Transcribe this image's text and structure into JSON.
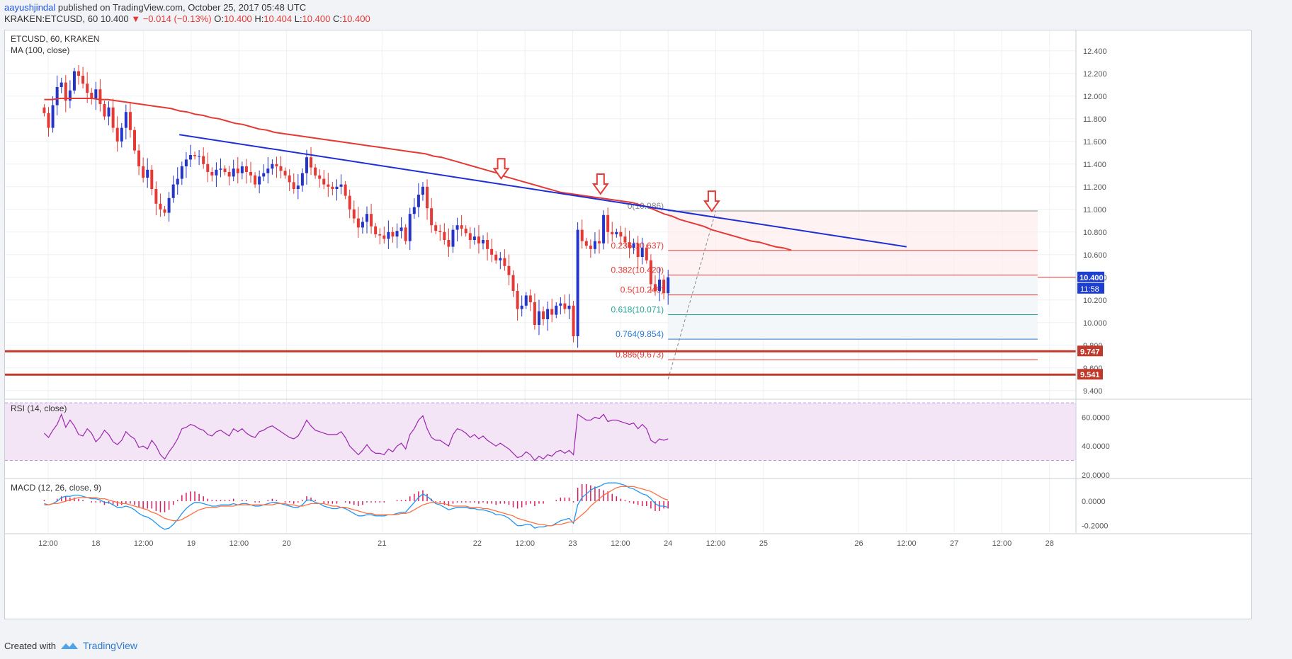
{
  "header": {
    "author": "aayushjindal",
    "published": "published on TradingView.com, October 25, 2017 05:48 UTC",
    "symbol_line": "KRAKEN:ETCUSD, 60",
    "price": "10.400",
    "change": "−0.014 (−0.13%)",
    "o_label": "O:",
    "o_value": "10.400",
    "h_label": "H:",
    "h_value": "10.404",
    "l_label": "L:",
    "l_value": "10.400",
    "c_label": "C:",
    "c_value": "10.400"
  },
  "chart_data": [
    {
      "type": "candlestick",
      "title": "ETCUSD, 60, KRAKEN",
      "indicator": "MA (100, close)",
      "ylim": [
        9.33,
        12.58
      ],
      "y_ticks": [
        "12.400",
        "12.200",
        "12.000",
        "11.800",
        "11.600",
        "11.400",
        "11.200",
        "11.000",
        "10.800",
        "10.600",
        "10.400",
        "10.200",
        "10.000",
        "9.800",
        "9.600",
        "9.400"
      ],
      "x_tick_labels": [
        "12:00",
        "18",
        "12:00",
        "19",
        "12:00",
        "20",
        "21",
        "22",
        "12:00",
        "23",
        "12:00",
        "24",
        "12:00",
        "25",
        "26",
        "12:00",
        "27",
        "12:00",
        "28"
      ],
      "x_tick_hours": [
        -36,
        -24,
        -12,
        0,
        12,
        24,
        48,
        72,
        84,
        96,
        108,
        120,
        132,
        144,
        168,
        180,
        192,
        204,
        216
      ],
      "closes": [
        11.85,
        11.72,
        11.92,
        12.08,
        12.12,
        11.96,
        12.05,
        12.22,
        12.18,
        12.11,
        12.03,
        11.98,
        12.06,
        11.93,
        11.82,
        11.9,
        11.72,
        11.6,
        11.72,
        11.86,
        11.7,
        11.52,
        11.38,
        11.28,
        11.35,
        11.18,
        11.05,
        11.0,
        10.97,
        11.1,
        11.22,
        11.27,
        11.38,
        11.44,
        11.48,
        11.47,
        11.47,
        11.4,
        11.33,
        11.3,
        11.35,
        11.36,
        11.33,
        11.29,
        11.36,
        11.32,
        11.38,
        11.33,
        11.3,
        11.22,
        11.29,
        11.32,
        11.36,
        11.4,
        11.38,
        11.34,
        11.3,
        11.24,
        11.18,
        11.21,
        11.32,
        11.46,
        11.37,
        11.3,
        11.27,
        11.22,
        11.2,
        11.18,
        11.2,
        11.22,
        11.12,
        11.0,
        10.92,
        10.84,
        10.89,
        10.96,
        10.85,
        10.78,
        10.77,
        10.74,
        10.8,
        10.76,
        10.81,
        10.84,
        10.72,
        10.96,
        11.02,
        11.13,
        11.2,
        11.01,
        10.86,
        10.81,
        10.8,
        10.73,
        10.67,
        10.82,
        10.86,
        10.83,
        10.79,
        10.73,
        10.76,
        10.7,
        10.73,
        10.65,
        10.6,
        10.55,
        10.57,
        10.5,
        10.42,
        10.28,
        10.12,
        10.15,
        10.24,
        10.18,
        9.98,
        10.1,
        10.03,
        10.12,
        10.07,
        10.15,
        10.17,
        10.12,
        10.15,
        9.88,
        10.82,
        10.72,
        10.68,
        10.65,
        10.72,
        10.7,
        10.95,
        10.8,
        10.78,
        10.8,
        10.76,
        10.71,
        10.66,
        10.7,
        10.58,
        10.66,
        10.55,
        10.34,
        10.28,
        10.38,
        10.26,
        10.4
      ],
      "ma100": [
        11.97,
        11.97,
        11.98,
        11.98,
        11.98,
        11.98,
        11.98,
        11.97,
        11.97,
        11.96,
        11.95,
        11.94,
        11.93,
        11.92,
        11.91,
        11.9,
        11.89,
        11.87,
        11.86,
        11.84,
        11.83,
        11.81,
        11.8,
        11.78,
        11.76,
        11.75,
        11.73,
        11.71,
        11.7,
        11.68,
        11.67,
        11.66,
        11.65,
        11.64,
        11.63,
        11.62,
        11.61,
        11.6,
        11.59,
        11.58,
        11.57,
        11.56,
        11.55,
        11.54,
        11.53,
        11.52,
        11.51,
        11.5,
        11.49,
        11.47,
        11.46,
        11.44,
        11.42,
        11.4,
        11.38,
        11.36,
        11.34,
        11.32,
        11.29,
        11.27,
        11.25,
        11.23,
        11.21,
        11.19,
        11.17,
        11.15,
        11.14,
        11.13,
        11.12,
        11.11,
        11.1,
        11.09,
        11.08,
        11.07,
        11.06,
        11.04,
        11.02,
        10.99,
        10.96,
        10.94,
        10.91,
        10.89,
        10.87,
        10.85,
        10.82,
        10.8,
        10.78,
        10.76,
        10.74,
        10.72,
        10.71,
        10.69,
        10.67,
        10.66,
        10.64
      ],
      "series": [
        {
          "name": "MA (100, close)"
        },
        {
          "name": "RSI (14, close)"
        },
        {
          "name": "MACD (12, 26, close, 9)"
        }
      ],
      "trendline": {
        "from_hour": -3,
        "from_value": 11.66,
        "to_hour": 180,
        "to_value": 10.67
      },
      "markers_hours": [
        78,
        103,
        131
      ],
      "fib_from_hour": 120,
      "fib_to_hour": 213,
      "fib_levels": [
        {
          "label": "0(10.986)",
          "value": 10.986,
          "color": "#888888"
        },
        {
          "label": "0.236(10.637)",
          "value": 10.637,
          "color": "#e53935"
        },
        {
          "label": "0.382(10.420)",
          "value": 10.42,
          "color": "#e53935"
        },
        {
          "label": "0.5(10.245)",
          "value": 10.245,
          "color": "#e53935"
        },
        {
          "label": "0.618(10.071)",
          "value": 10.071,
          "color": "#26a69a"
        },
        {
          "label": "0.764(9.854)",
          "value": 9.854,
          "color": "#2e7bcf"
        },
        {
          "label": "0.886(9.673)",
          "value": 9.673,
          "color": "#e53935"
        }
      ],
      "support_levels": [
        {
          "label": "9.747",
          "value": 9.747
        },
        {
          "label": "9.541",
          "value": 9.541
        }
      ],
      "current_price": {
        "label": "10.400",
        "value": 10.4,
        "countdown": "11:58"
      }
    },
    {
      "type": "line",
      "title": "RSI (14, close)",
      "ylim": [
        18,
        72
      ],
      "y_ticks": [
        "60.0000",
        "40.0000",
        "20.0000"
      ],
      "band": [
        30,
        70
      ],
      "values": [
        49,
        46,
        51,
        55,
        62,
        53,
        58,
        54,
        48,
        47,
        52,
        49,
        43,
        46,
        51,
        48,
        43,
        41,
        44,
        50,
        47,
        45,
        39,
        40,
        38,
        44,
        40,
        34,
        31,
        36,
        40,
        45,
        52,
        53,
        55,
        54,
        52,
        51,
        48,
        47,
        50,
        51,
        49,
        47,
        52,
        50,
        52,
        49,
        47,
        46,
        50,
        51,
        53,
        54,
        52,
        50,
        48,
        46,
        45,
        47,
        52,
        58,
        54,
        51,
        50,
        49,
        48,
        48,
        48,
        50,
        46,
        40,
        37,
        34,
        37,
        41,
        37,
        35,
        35,
        34,
        38,
        36,
        40,
        42,
        38,
        48,
        52,
        58,
        61,
        52,
        46,
        44,
        44,
        42,
        40,
        48,
        52,
        51,
        49,
        46,
        48,
        45,
        47,
        44,
        42,
        40,
        42,
        40,
        38,
        35,
        32,
        33,
        36,
        34,
        30,
        33,
        31,
        34,
        33,
        36,
        37,
        35,
        37,
        34,
        62,
        60,
        58,
        58,
        60,
        59,
        62,
        57,
        58,
        58,
        57,
        56,
        55,
        56,
        52,
        55,
        52,
        44,
        42,
        45,
        44,
        45
      ]
    },
    {
      "type": "line",
      "title": "MACD (12, 26, close, 9)",
      "ylim": [
        -0.26,
        0.18
      ],
      "y_ticks": [
        "0.0000",
        "-0.2000"
      ],
      "macd": [
        -0.02,
        -0.03,
        -0.02,
        0.0,
        0.03,
        0.04,
        0.04,
        0.05,
        0.05,
        0.04,
        0.03,
        0.02,
        0.02,
        0.01,
        -0.01,
        -0.01,
        -0.03,
        -0.05,
        -0.05,
        -0.04,
        -0.05,
        -0.07,
        -0.1,
        -0.12,
        -0.13,
        -0.15,
        -0.18,
        -0.21,
        -0.23,
        -0.22,
        -0.19,
        -0.15,
        -0.1,
        -0.06,
        -0.03,
        -0.01,
        -0.01,
        -0.02,
        -0.03,
        -0.04,
        -0.04,
        -0.03,
        -0.03,
        -0.03,
        -0.02,
        -0.03,
        -0.02,
        -0.02,
        -0.03,
        -0.04,
        -0.04,
        -0.03,
        -0.02,
        -0.01,
        -0.01,
        -0.02,
        -0.03,
        -0.04,
        -0.05,
        -0.05,
        -0.03,
        0.01,
        0.01,
        -0.01,
        -0.02,
        -0.04,
        -0.05,
        -0.06,
        -0.06,
        -0.05,
        -0.06,
        -0.08,
        -0.1,
        -0.12,
        -0.12,
        -0.11,
        -0.11,
        -0.12,
        -0.12,
        -0.12,
        -0.11,
        -0.11,
        -0.1,
        -0.09,
        -0.09,
        -0.05,
        -0.01,
        0.03,
        0.06,
        0.04,
        0.01,
        -0.02,
        -0.03,
        -0.05,
        -0.07,
        -0.06,
        -0.05,
        -0.05,
        -0.05,
        -0.06,
        -0.06,
        -0.07,
        -0.07,
        -0.08,
        -0.09,
        -0.11,
        -0.11,
        -0.12,
        -0.14,
        -0.17,
        -0.2,
        -0.2,
        -0.19,
        -0.19,
        -0.22,
        -0.21,
        -0.21,
        -0.2,
        -0.2,
        -0.18,
        -0.16,
        -0.15,
        -0.14,
        -0.18,
        -0.03,
        0.03,
        0.06,
        0.09,
        0.11,
        0.12,
        0.14,
        0.15,
        0.15,
        0.15,
        0.14,
        0.13,
        0.11,
        0.1,
        0.08,
        0.06,
        0.05,
        0.02,
        -0.02,
        -0.04,
        -0.04,
        -0.05
      ],
      "signal": [
        -0.03,
        -0.03,
        -0.02,
        -0.02,
        -0.01,
        0.0,
        0.01,
        0.02,
        0.03,
        0.03,
        0.03,
        0.03,
        0.03,
        0.02,
        0.02,
        0.01,
        0.0,
        -0.01,
        -0.02,
        -0.02,
        -0.03,
        -0.04,
        -0.05,
        -0.06,
        -0.07,
        -0.09,
        -0.1,
        -0.12,
        -0.14,
        -0.15,
        -0.16,
        -0.16,
        -0.15,
        -0.13,
        -0.11,
        -0.09,
        -0.07,
        -0.06,
        -0.05,
        -0.05,
        -0.05,
        -0.04,
        -0.04,
        -0.04,
        -0.04,
        -0.03,
        -0.03,
        -0.03,
        -0.03,
        -0.03,
        -0.03,
        -0.03,
        -0.03,
        -0.03,
        -0.02,
        -0.02,
        -0.02,
        -0.03,
        -0.03,
        -0.04,
        -0.04,
        -0.03,
        -0.02,
        -0.02,
        -0.02,
        -0.02,
        -0.03,
        -0.04,
        -0.04,
        -0.05,
        -0.05,
        -0.06,
        -0.07,
        -0.08,
        -0.09,
        -0.1,
        -0.1,
        -0.11,
        -0.11,
        -0.11,
        -0.11,
        -0.11,
        -0.11,
        -0.1,
        -0.1,
        -0.09,
        -0.07,
        -0.05,
        -0.03,
        -0.02,
        -0.01,
        -0.01,
        -0.02,
        -0.02,
        -0.03,
        -0.04,
        -0.04,
        -0.04,
        -0.04,
        -0.05,
        -0.05,
        -0.05,
        -0.06,
        -0.06,
        -0.07,
        -0.08,
        -0.09,
        -0.1,
        -0.11,
        -0.12,
        -0.14,
        -0.15,
        -0.16,
        -0.17,
        -0.18,
        -0.19,
        -0.19,
        -0.2,
        -0.2,
        -0.19,
        -0.19,
        -0.18,
        -0.17,
        -0.17,
        -0.14,
        -0.11,
        -0.08,
        -0.04,
        -0.01,
        0.02,
        0.05,
        0.07,
        0.09,
        0.11,
        0.12,
        0.12,
        0.12,
        0.12,
        0.11,
        0.1,
        0.09,
        0.08,
        0.06,
        0.04,
        0.02,
        0.01
      ]
    }
  ],
  "footer": {
    "created_with": "Created with",
    "brand": "TradingView"
  },
  "colors": {
    "up": "#2535c9",
    "down": "#e53935",
    "ma": "#e53935",
    "trend": "#1f2fd6",
    "rsi": "#9c27b0",
    "macd_line": "#2196f3",
    "signal_line": "#ff7043",
    "hist": "#d81b60"
  }
}
